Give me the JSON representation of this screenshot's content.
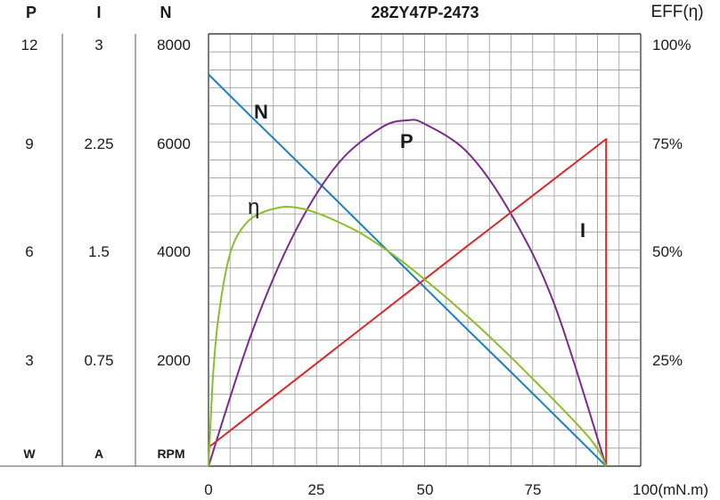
{
  "chart_data": {
    "type": "line",
    "title": "28ZY47P-2473",
    "x_axis": {
      "ticks": [
        "0",
        "25",
        "50",
        "75",
        "100(mN.m)"
      ],
      "range": [
        0,
        100
      ]
    },
    "left_axes": [
      {
        "header": "P",
        "unit": "W",
        "ticks": [
          "3",
          "6",
          "9",
          "12"
        ],
        "range": [
          0,
          12
        ]
      },
      {
        "header": "I",
        "unit": "A",
        "ticks": [
          "0.75",
          "1.5",
          "2.25",
          "3"
        ],
        "range": [
          0,
          3
        ]
      },
      {
        "header": "N",
        "unit": "RPM",
        "ticks": [
          "2000",
          "4000",
          "6000",
          "8000"
        ],
        "range": [
          0,
          8000
        ]
      }
    ],
    "right_axis": {
      "header": "EFF(η)",
      "ticks": [
        "25%",
        "50%",
        "75%",
        "100%"
      ],
      "range": [
        0,
        100
      ]
    },
    "series": [
      {
        "name": "N",
        "color": "#1a7fbf",
        "axis": "N (RPM)",
        "x": [
          0,
          10,
          20,
          30,
          40,
          50,
          60,
          70,
          80,
          92
        ],
        "y": [
          7250,
          6460,
          5680,
          4890,
          4100,
          3310,
          2520,
          1740,
          950,
          0
        ]
      },
      {
        "name": "P",
        "color": "#7a2a8c",
        "axis": "P (W)",
        "x": [
          0,
          10,
          20,
          30,
          40,
          46,
          50,
          60,
          70,
          80,
          92
        ],
        "y": [
          0,
          3.7,
          6.5,
          8.4,
          9.4,
          9.6,
          9.5,
          8.7,
          7.0,
          4.5,
          0
        ]
      },
      {
        "name": "I",
        "color": "#d92b2b",
        "axis": "I (A)",
        "x": [
          0,
          30,
          60,
          92,
          92
        ],
        "y": [
          0.13,
          0.83,
          1.53,
          2.27,
          0
        ]
      },
      {
        "name": "η",
        "color": "#8cbd2a",
        "axis": "EFF (%)",
        "x": [
          0,
          1,
          2,
          4,
          6,
          9,
          12,
          15,
          18,
          22,
          26,
          30,
          35,
          40,
          45,
          50,
          55,
          60,
          65,
          70,
          75,
          80,
          85,
          88,
          90,
          91,
          92
        ],
        "y": [
          0,
          20,
          32,
          45,
          52,
          56.5,
          58.5,
          59.5,
          60,
          59.5,
          58.2,
          56.5,
          54,
          50.8,
          47.2,
          43.2,
          39,
          34.6,
          30,
          25.2,
          20.2,
          15.2,
          10,
          6.7,
          4,
          2.3,
          0
        ]
      }
    ]
  }
}
